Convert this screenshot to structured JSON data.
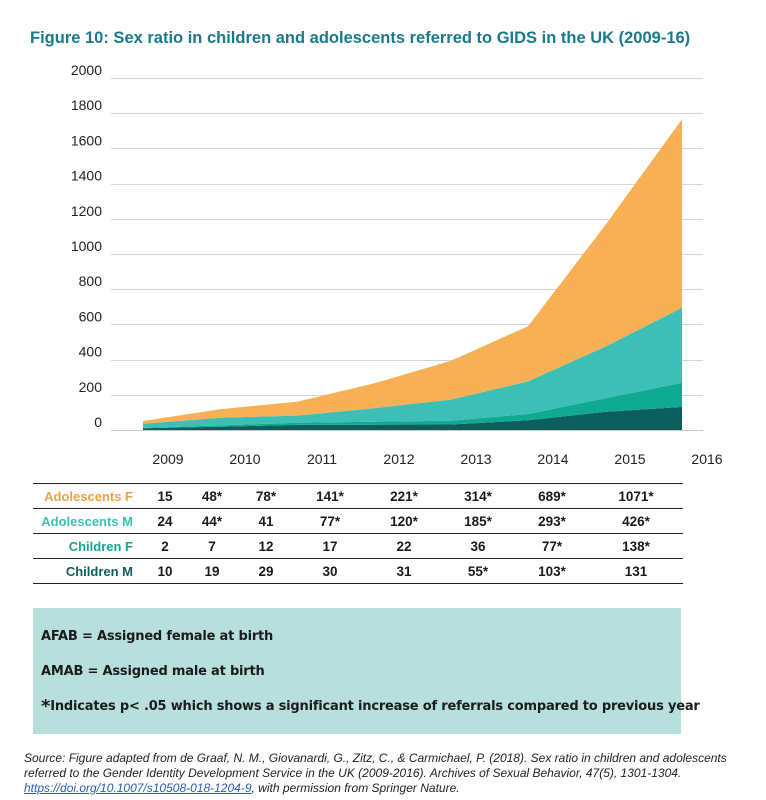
{
  "title": "Figure 10: Sex ratio in children and adolescents referred to GIDS in the UK (2009-16)",
  "colors": {
    "adolescents_f": "#f7b055",
    "adolescents_m": "#3dbfb6",
    "children_f": "#10a991",
    "children_m": "#0c5e5c",
    "title": "#1a7a8c",
    "note_bg": "#b7e0dc"
  },
  "chart_data": {
    "type": "area",
    "stacked": true,
    "title": "Figure 10: Sex ratio in children and adolescents referred to GIDS in the UK (2009-16)",
    "xlabel": "",
    "ylabel": "",
    "categories": [
      "2009",
      "2010",
      "2011",
      "2012",
      "2013",
      "2014",
      "2015",
      "2016"
    ],
    "ylim": [
      0,
      2000
    ],
    "yticks": [
      "0",
      "200",
      "400",
      "600",
      "800",
      "1000",
      "1200",
      "1400",
      "1600",
      "1800",
      "2000"
    ],
    "grid": true,
    "legend": "table below chart",
    "series": [
      {
        "name": "Children M",
        "values": [
          10,
          19,
          29,
          30,
          31,
          55,
          103,
          131
        ],
        "color": "#0c5e5c"
      },
      {
        "name": "Children F",
        "values": [
          2,
          7,
          12,
          17,
          22,
          36,
          77,
          138
        ],
        "color": "#10a991"
      },
      {
        "name": "Adolescents M",
        "values": [
          24,
          44,
          41,
          77,
          120,
          185,
          293,
          426
        ],
        "color": "#3dbfb6"
      },
      {
        "name": "Adolescents F",
        "values": [
          15,
          48,
          78,
          141,
          221,
          314,
          689,
          1071
        ],
        "color": "#f7b055"
      }
    ]
  },
  "table": {
    "rows": [
      {
        "label": "Adolescents F",
        "color": "#f0a040",
        "cells": [
          "15",
          "48*",
          "78*",
          "141*",
          "221*",
          "314*",
          "689*",
          "1071*"
        ]
      },
      {
        "label": "Adolescents M",
        "color": "#3dbfb6",
        "cells": [
          "24",
          "44*",
          "41",
          "77*",
          "120*",
          "185*",
          "293*",
          "426*"
        ]
      },
      {
        "label": "Children F",
        "color": "#10a991",
        "cells": [
          "2",
          "7",
          "12",
          "17",
          "22",
          "36",
          "77*",
          "138*"
        ]
      },
      {
        "label": "Children M",
        "color": "#0c5e5c",
        "cells": [
          "10",
          "19",
          "29",
          "30",
          "31",
          "55*",
          "103*",
          "131"
        ]
      }
    ]
  },
  "notes": {
    "afab": "AFAB = Assigned female at birth",
    "amab": "AMAB = Assigned male at birth",
    "star": "*",
    "sig": "Indicates p< .05 which shows a significant increase of referrals compared to previous year"
  },
  "source": {
    "text": "Source: Figure adapted from de Graaf, N. M., Giovanardi, G., Zitz, C., & Carmichael, P. (2018). Sex ratio in children and adolescents referred to the Gender Identity Development Service in the UK (2009-2016). Archives of Sexual Behavior, 47(5), 1301-1304. ",
    "link": "https://doi.org/10.1007/s10508-018-1204-9",
    "suffix": ", with permission from Springer Nature."
  }
}
